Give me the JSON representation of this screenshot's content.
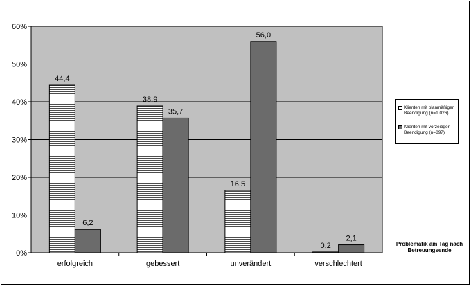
{
  "chart_data": {
    "type": "bar",
    "categories": [
      "erfolgreich",
      "gebessert",
      "unverändert",
      "verschlechtert"
    ],
    "series": [
      {
        "name": "Klienten mit planmäßiger Beendigung (n=1.026)",
        "values": [
          44.4,
          38.9,
          16.5,
          0.2
        ],
        "labels": [
          "44,4",
          "38,9",
          "16,5",
          "0,2"
        ],
        "color": "#ffffff",
        "pattern": "horizontal-lines"
      },
      {
        "name": "Klienten mit vorzeitiger Beendigung (n=897)",
        "values": [
          6.2,
          35.7,
          56.0,
          2.1
        ],
        "labels": [
          "6,2",
          "35,7",
          "56,0",
          "2,1"
        ],
        "color": "#6b6b6b"
      }
    ],
    "xlabel": "Problematik am Tag nach Betreuungsende",
    "xlabel_lines": [
      "Problematik am Tag nach",
      "Betreuungsende"
    ],
    "ylim": [
      0,
      60
    ],
    "yticks": [
      0,
      10,
      20,
      30,
      40,
      50,
      60
    ],
    "ytick_labels": [
      "0%",
      "10%",
      "20%",
      "30%",
      "40%",
      "50%",
      "60%"
    ],
    "grid": true,
    "plot_background": "#c0c0c0",
    "legend_position": "right"
  }
}
